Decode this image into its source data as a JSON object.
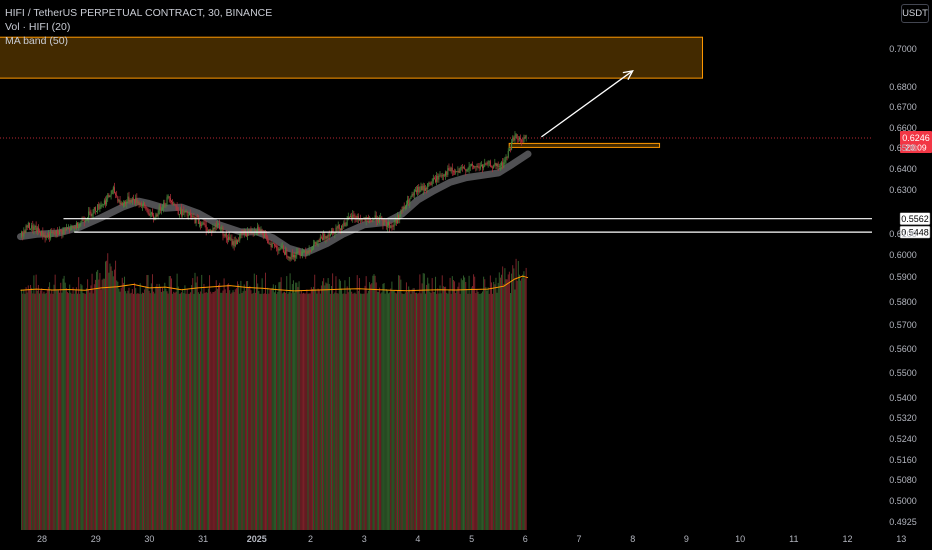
{
  "header": {
    "symbol_line": "HIFI / TetherUS PERPETUAL CONTRACT, 30, BINANCE",
    "volume_line": "Vol · HIFI (20)",
    "ma_line": "MA band (50)",
    "currency": "USDT"
  },
  "chart_data": {
    "type": "candlestick",
    "ylim": [
      0.4895,
      0.7165
    ],
    "y_ticks": [
      "0.7000",
      "0.6800",
      "0.6700",
      "0.6600",
      "0.6500",
      "0.6400",
      "0.6300",
      "0.6100",
      "0.6000",
      "0.5900",
      "0.5800",
      "0.5700",
      "0.5600",
      "0.5500",
      "0.5400",
      "0.5320",
      "0.5240",
      "0.5160",
      "0.5080",
      "0.5000",
      "0.4925"
    ],
    "x_ticks": [
      "28",
      "29",
      "30",
      "31",
      "2025",
      "2",
      "3",
      "4",
      "5",
      "6",
      "7",
      "8",
      "9",
      "10",
      "11",
      "12",
      "13"
    ],
    "price_path": [
      [
        27.6,
        0.54
      ],
      [
        27.75,
        0.55
      ],
      [
        27.9,
        0.547
      ],
      [
        28.1,
        0.541
      ],
      [
        28.35,
        0.545
      ],
      [
        28.6,
        0.548
      ],
      [
        28.8,
        0.556
      ],
      [
        29.0,
        0.564
      ],
      [
        29.2,
        0.571
      ],
      [
        29.35,
        0.58
      ],
      [
        29.5,
        0.568
      ],
      [
        29.65,
        0.573
      ],
      [
        29.8,
        0.571
      ],
      [
        29.95,
        0.565
      ],
      [
        30.1,
        0.556
      ],
      [
        30.25,
        0.567
      ],
      [
        30.4,
        0.575
      ],
      [
        30.55,
        0.563
      ],
      [
        30.7,
        0.56
      ],
      [
        30.85,
        0.556
      ],
      [
        31.0,
        0.552
      ],
      [
        31.15,
        0.545
      ],
      [
        31.3,
        0.552
      ],
      [
        31.45,
        0.54
      ],
      [
        31.6,
        0.535
      ],
      [
        31.75,
        0.543
      ],
      [
        31.9,
        0.545
      ],
      [
        32.05,
        0.549
      ],
      [
        32.2,
        0.538
      ],
      [
        32.35,
        0.533
      ],
      [
        32.5,
        0.53
      ],
      [
        32.65,
        0.524
      ],
      [
        32.8,
        0.527
      ],
      [
        33.0,
        0.53
      ],
      [
        33.2,
        0.538
      ],
      [
        33.4,
        0.545
      ],
      [
        33.6,
        0.55
      ],
      [
        33.8,
        0.558
      ],
      [
        33.95,
        0.556
      ],
      [
        34.1,
        0.554
      ],
      [
        34.25,
        0.557
      ],
      [
        34.4,
        0.552
      ],
      [
        34.55,
        0.55
      ],
      [
        34.7,
        0.561
      ],
      [
        34.85,
        0.571
      ],
      [
        35.0,
        0.58
      ],
      [
        35.15,
        0.582
      ],
      [
        35.3,
        0.588
      ],
      [
        35.45,
        0.593
      ],
      [
        35.6,
        0.597
      ],
      [
        35.75,
        0.595
      ],
      [
        35.9,
        0.599
      ],
      [
        36.05,
        0.6
      ],
      [
        36.2,
        0.6
      ],
      [
        36.35,
        0.602
      ],
      [
        36.5,
        0.6
      ],
      [
        36.6,
        0.602
      ],
      [
        36.68,
        0.609
      ],
      [
        36.75,
        0.618
      ],
      [
        36.82,
        0.627
      ],
      [
        36.9,
        0.622
      ],
      [
        36.98,
        0.623
      ],
      [
        37.05,
        0.6246
      ]
    ],
    "ma_band": [
      [
        27.6,
        0.541
      ],
      [
        27.9,
        0.543
      ],
      [
        28.3,
        0.544
      ],
      [
        28.7,
        0.549
      ],
      [
        29.1,
        0.557
      ],
      [
        29.5,
        0.566
      ],
      [
        29.8,
        0.571
      ],
      [
        30.0,
        0.569
      ],
      [
        30.3,
        0.565
      ],
      [
        30.6,
        0.566
      ],
      [
        30.9,
        0.561
      ],
      [
        31.3,
        0.551
      ],
      [
        31.7,
        0.545
      ],
      [
        32.0,
        0.545
      ],
      [
        32.3,
        0.54
      ],
      [
        32.6,
        0.531
      ],
      [
        32.9,
        0.527
      ],
      [
        33.3,
        0.535
      ],
      [
        33.6,
        0.543
      ],
      [
        34.0,
        0.551
      ],
      [
        34.4,
        0.553
      ],
      [
        34.7,
        0.56
      ],
      [
        35.0,
        0.572
      ],
      [
        35.3,
        0.58
      ],
      [
        35.6,
        0.587
      ],
      [
        35.9,
        0.591
      ],
      [
        36.2,
        0.593
      ],
      [
        36.5,
        0.595
      ],
      [
        36.75,
        0.602
      ],
      [
        37.05,
        0.611
      ]
    ],
    "volume_line": [
      [
        27.6,
        0.4955
      ],
      [
        27.9,
        0.4965
      ],
      [
        28.2,
        0.4958
      ],
      [
        28.5,
        0.4962
      ],
      [
        28.8,
        0.4955
      ],
      [
        29.1,
        0.4975
      ],
      [
        29.4,
        0.4985
      ],
      [
        29.7,
        0.5005
      ],
      [
        30.0,
        0.4975
      ],
      [
        30.3,
        0.4982
      ],
      [
        30.6,
        0.496
      ],
      [
        30.9,
        0.4975
      ],
      [
        31.2,
        0.4985
      ],
      [
        31.5,
        0.4995
      ],
      [
        31.8,
        0.498
      ],
      [
        32.1,
        0.4972
      ],
      [
        32.4,
        0.496
      ],
      [
        32.7,
        0.495
      ],
      [
        33.0,
        0.4955
      ],
      [
        33.3,
        0.496
      ],
      [
        33.6,
        0.4965
      ],
      [
        33.9,
        0.4968
      ],
      [
        34.2,
        0.4962
      ],
      [
        34.5,
        0.4955
      ],
      [
        34.8,
        0.4952
      ],
      [
        35.1,
        0.4957
      ],
      [
        35.4,
        0.496
      ],
      [
        35.7,
        0.4958
      ],
      [
        36.0,
        0.4962
      ],
      [
        36.3,
        0.4965
      ],
      [
        36.6,
        0.499
      ],
      [
        36.8,
        0.505
      ],
      [
        36.95,
        0.5075
      ],
      [
        37.05,
        0.5062
      ]
    ],
    "last_price": "0.6246",
    "countdown": "20:09",
    "support_levels": [
      {
        "label": "0.5562",
        "value": 0.5562,
        "x_start": 28.4
      },
      {
        "label": "0.5448",
        "value": 0.5448,
        "x_start": 28.6
      }
    ],
    "zones": [
      {
        "name": "target-zone",
        "x": [
          26.2,
          40.3
        ],
        "y": [
          0.6753,
          0.71
        ]
      },
      {
        "name": "entry-zone",
        "x": [
          36.7,
          39.5
        ],
        "y": [
          0.6166,
          0.62
        ]
      }
    ],
    "arrow": {
      "from": [
        37.3,
        0.6255
      ],
      "to": [
        39.0,
        0.6815
      ]
    },
    "colors": {
      "background": "#000000",
      "up": "#4a8a3e",
      "down": "#b8323c",
      "ma_band": "#5e5e62",
      "zone_border": "#ff9800",
      "zone_fill": "#4a2f00",
      "volume_line": "#ff9800",
      "last_price_bg": "#f23645",
      "axis_text": "#b2b5be"
    }
  }
}
